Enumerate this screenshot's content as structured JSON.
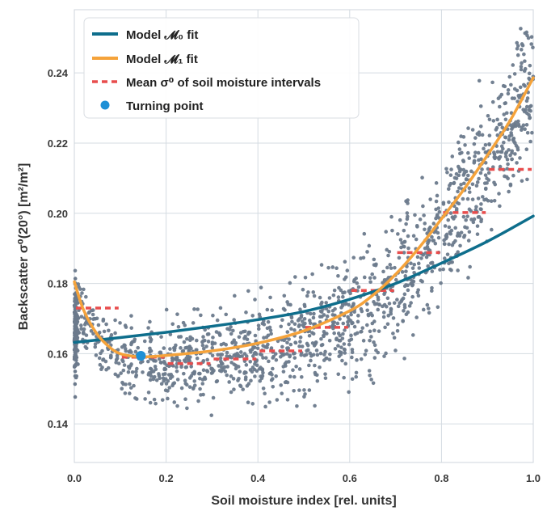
{
  "chart_data": {
    "type": "scatter",
    "xlabel": "Soil moisture index [rel. units]",
    "ylabel": "Backscatter σ⁰(20°) [m²/m²]",
    "xlim": [
      0.0,
      1.0
    ],
    "ylim": [
      0.129,
      0.258
    ],
    "x_ticks": [
      "0.0",
      "0.2",
      "0.4",
      "0.6",
      "0.8",
      "1.0"
    ],
    "y_ticks": [
      "0.14",
      "0.16",
      "0.18",
      "0.20",
      "0.22",
      "0.24"
    ],
    "grid": true,
    "legend_position": "top-left",
    "legend": [
      {
        "id": "m0",
        "label": "Model 𝓜₀ fit",
        "color": "#0e6e8c",
        "style": "line"
      },
      {
        "id": "m1",
        "label": "Model 𝓜₁ fit",
        "color": "#f5a33b",
        "style": "line"
      },
      {
        "id": "mean",
        "label": "Mean σ⁰ of soil moisture intervals",
        "color": "#e84d4d",
        "style": "dashed"
      },
      {
        "id": "tp",
        "label": "Turning point",
        "color": "#1e90d6",
        "style": "point"
      }
    ],
    "series": [
      {
        "id": "m0",
        "color": "#0e6e8c",
        "x": [
          0.0,
          0.1,
          0.2,
          0.3,
          0.4,
          0.5,
          0.6,
          0.7,
          0.8,
          0.9,
          1.0
        ],
        "y": [
          0.1632,
          0.1646,
          0.1661,
          0.1678,
          0.1697,
          0.172,
          0.1755,
          0.18,
          0.1858,
          0.192,
          0.1992
        ]
      },
      {
        "id": "m1",
        "color": "#f5a33b",
        "x": [
          0.0,
          0.02,
          0.05,
          0.08,
          0.1,
          0.12,
          0.15,
          0.2,
          0.3,
          0.4,
          0.5,
          0.6,
          0.65,
          0.7,
          0.75,
          0.8,
          0.85,
          0.9,
          0.95,
          1.0
        ],
        "y": [
          0.1805,
          0.1725,
          0.1655,
          0.1615,
          0.16,
          0.1594,
          0.1591,
          0.1595,
          0.1608,
          0.163,
          0.1665,
          0.1722,
          0.1766,
          0.1826,
          0.19,
          0.1984,
          0.207,
          0.2165,
          0.2265,
          0.2386
        ]
      }
    ],
    "interval_means": [
      {
        "x0": 0.0,
        "x1": 0.1,
        "y": 0.173
      },
      {
        "x0": 0.1,
        "x1": 0.2,
        "y": 0.159
      },
      {
        "x0": 0.2,
        "x1": 0.3,
        "y": 0.1572
      },
      {
        "x0": 0.3,
        "x1": 0.4,
        "y": 0.1585
      },
      {
        "x0": 0.4,
        "x1": 0.5,
        "y": 0.1608
      },
      {
        "x0": 0.5,
        "x1": 0.6,
        "y": 0.1675
      },
      {
        "x0": 0.6,
        "x1": 0.7,
        "y": 0.178
      },
      {
        "x0": 0.7,
        "x1": 0.8,
        "y": 0.1888
      },
      {
        "x0": 0.8,
        "x1": 0.9,
        "y": 0.2002
      },
      {
        "x0": 0.9,
        "x1": 1.0,
        "y": 0.2125
      }
    ],
    "turning_point": {
      "x": 0.145,
      "y": 0.1594
    },
    "scatter_color": "#6c7a8c"
  }
}
